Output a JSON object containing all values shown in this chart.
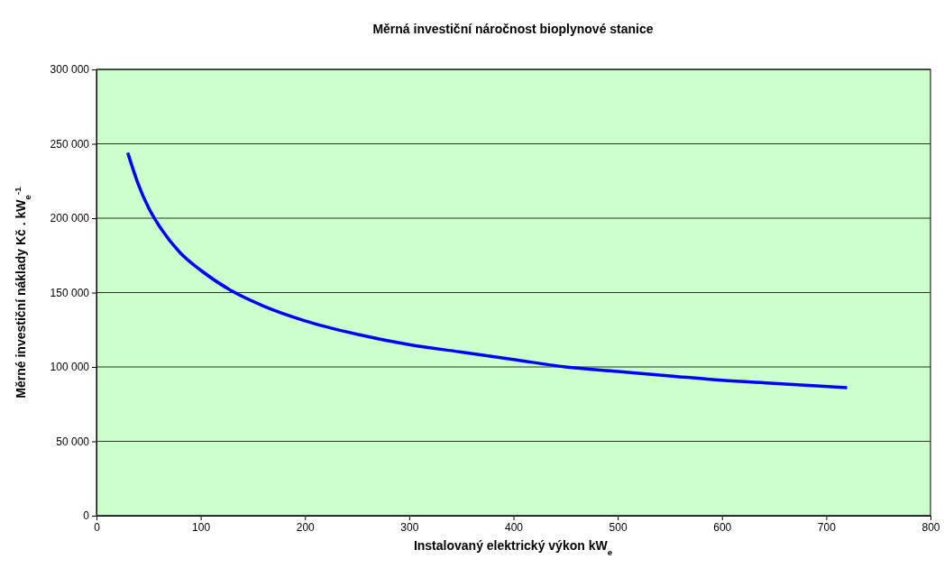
{
  "chart_data": {
    "type": "line",
    "title": "Měrná investiční náročnost bioplynové stanice",
    "xlabel": "Instalovaný elektrický výkon kW$_{e}$",
    "ylabel": "Měrné investiční náklady Kč . kW$_{e}$$^{-1}$",
    "x": [
      30,
      40,
      50,
      60,
      80,
      100,
      130,
      160,
      200,
      250,
      300,
      350,
      400,
      450,
      500,
      550,
      600,
      650,
      720
    ],
    "series": [
      {
        "color": "#0000ff",
        "values": [
          244000,
          223000,
          207000,
          195000,
          177000,
          165000,
          151000,
          141000,
          131000,
          122000,
          115000,
          110000,
          105000,
          100000,
          97000,
          94000,
          91000,
          89000,
          86000
        ]
      }
    ],
    "xlim": [
      0,
      800
    ],
    "xticks": [
      0,
      100,
      200,
      300,
      400,
      500,
      600,
      700,
      800
    ],
    "ylim": [
      0,
      300000
    ],
    "yticks": [
      {
        "value": 0,
        "label": "0"
      },
      {
        "value": 50000,
        "label": "50 000"
      },
      {
        "value": 100000,
        "label": "100 000"
      },
      {
        "value": 150000,
        "label": "150 000"
      },
      {
        "value": 200000,
        "label": "200 000"
      },
      {
        "value": 250000,
        "label": "250 000"
      },
      {
        "value": 300000,
        "label": "300 000"
      }
    ],
    "grid": "y",
    "marker": "none",
    "line_style": "solid"
  }
}
